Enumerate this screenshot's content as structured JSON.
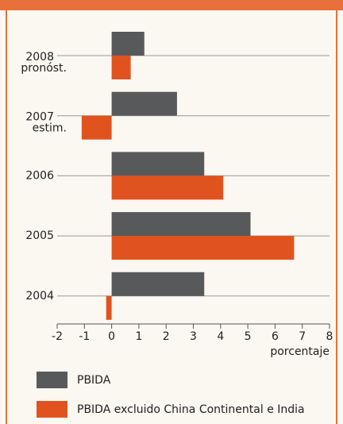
{
  "chart_data": {
    "type": "barh",
    "categories": [
      [
        "2008",
        "pronóst."
      ],
      [
        "2007",
        "estim."
      ],
      [
        "2006"
      ],
      [
        "2005"
      ],
      [
        "2004"
      ]
    ],
    "series": [
      {
        "name": "PBIDA",
        "color": "#58595b",
        "values": [
          1.2,
          2.4,
          3.4,
          5.1,
          3.4
        ]
      },
      {
        "name": "PBIDA excluido China Continental e India",
        "color": "#e0531f",
        "values": [
          0.7,
          -1.1,
          4.1,
          6.7,
          -0.2
        ]
      }
    ],
    "xlabel": "porcentaje",
    "xlim": [
      -2,
      8
    ],
    "xticks": [
      -2,
      -1,
      0,
      1,
      2,
      3,
      4,
      5,
      6,
      7,
      8
    ],
    "grid": true
  }
}
